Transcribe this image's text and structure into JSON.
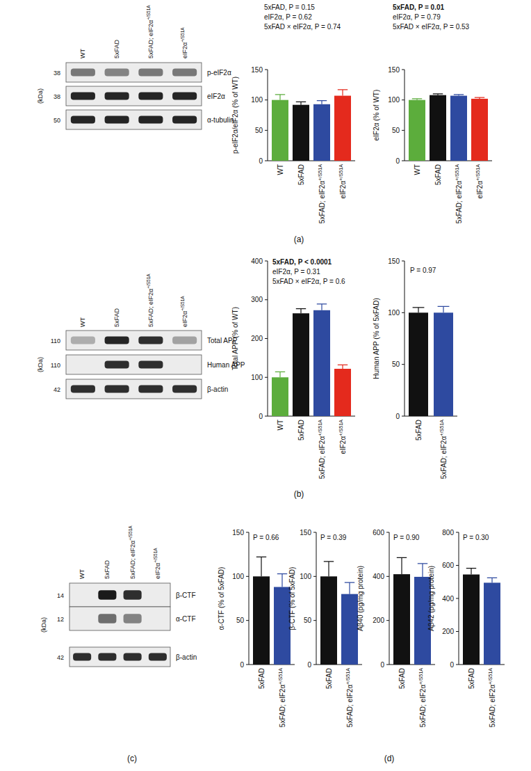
{
  "panel_labels": [
    "(a)",
    "(b)",
    "(c)",
    "(d)"
  ],
  "blots": [
    {
      "unit": "(kDa)",
      "lanes": [
        "WT",
        "5xFAD",
        "5xFAD; eIF2α+/S51A",
        "eIF2α+/S51A"
      ],
      "rows": [
        {
          "label": "p-eIF2α",
          "kda": 38,
          "bands": [
            0.55,
            0.5,
            0.55,
            0.55
          ]
        },
        {
          "label": "eIF2α",
          "kda": 38,
          "bands": [
            0.95,
            0.95,
            0.95,
            0.95
          ]
        },
        {
          "label": "α-tubulin",
          "kda": 50,
          "bands": [
            0.95,
            0.95,
            0.95,
            0.95
          ]
        }
      ]
    },
    {
      "unit": "(kDa)",
      "lanes": [
        "WT",
        "5xFAD",
        "5xFAD; eIF2α+/S51A",
        "eIF2α+/S51A"
      ],
      "rows": [
        {
          "label": "Total APP",
          "kda": 110,
          "bands": [
            0.3,
            0.95,
            0.9,
            0.35
          ]
        },
        {
          "label": "Human APP",
          "kda": 110,
          "bands": [
            0,
            0.9,
            0.9,
            0
          ]
        },
        {
          "label": "β-actin",
          "kda": 42,
          "bands": [
            0.9,
            0.9,
            0.9,
            0.9
          ]
        }
      ]
    },
    {
      "unit": "(kDa)",
      "lanes": [
        "WT",
        "5xFAD",
        "5xFAD; eIF2α+/S51A",
        "eIF2α+/S51A"
      ],
      "rows": [
        {
          "label": "β-CTF",
          "kda": 14,
          "bands": [
            0,
            1,
            0.9,
            0
          ]
        },
        {
          "label": "α-CTF",
          "kda": 12,
          "bands": [
            0,
            0.6,
            0.5,
            0
          ]
        },
        {
          "label": "β-actin",
          "kda": 42,
          "bands": [
            0.9,
            0.9,
            0.9,
            0.9
          ]
        }
      ]
    }
  ],
  "chart_data": [
    {
      "type": "bar",
      "ylabel": "p-eIF2α/eIF2α (% of WT)",
      "categories": [
        "WT",
        "5xFAD",
        "5xFAD; eIF2α+/S51A",
        "eIF2α+/S51A"
      ],
      "values": [
        100,
        92,
        93,
        107
      ],
      "errors": [
        9,
        5,
        6,
        10
      ],
      "colors": [
        "#5cad3c",
        "#111111",
        "#2e4aa0",
        "#e42a1d"
      ],
      "ylim": [
        0,
        150
      ],
      "yticks": [
        0,
        50,
        100,
        150
      ],
      "annotations": [
        "5xFAD, P = 0.15",
        "eIF2α, P = 0.62",
        "5xFAD × eIF2α, P = 0.74"
      ]
    },
    {
      "type": "bar",
      "ylabel": "eIF2α (% of WT)",
      "categories": [
        "WT",
        "5xFAD",
        "5xFAD; eIF2α+/S51A",
        "eIF2α+/S51A"
      ],
      "values": [
        100,
        108,
        107,
        102
      ],
      "errors": [
        2,
        2,
        2,
        2
      ],
      "colors": [
        "#5cad3c",
        "#111111",
        "#2e4aa0",
        "#e42a1d"
      ],
      "ylim": [
        0,
        150
      ],
      "yticks": [
        0,
        50,
        100,
        150
      ],
      "annotations": [
        "5xFAD, P = 0.01",
        "eIF2α, P = 0.79",
        "5xFAD × eIF2α, P = 0.53"
      ]
    },
    {
      "type": "bar",
      "ylabel": "Total APP (% of WT)",
      "categories": [
        "WT",
        "5xFAD",
        "5xFAD; eIF2α+/S51A",
        "eIF2α+/S51A"
      ],
      "values": [
        100,
        265,
        273,
        122
      ],
      "errors": [
        14,
        12,
        16,
        10
      ],
      "colors": [
        "#5cad3c",
        "#111111",
        "#2e4aa0",
        "#e42a1d"
      ],
      "ylim": [
        0,
        400
      ],
      "yticks": [
        0,
        100,
        200,
        300,
        400
      ],
      "annotations": [
        "5xFAD, P < 0.0001",
        "eIF2α, P = 0.31",
        "5xFAD × eIF2α, P = 0.6"
      ]
    },
    {
      "type": "bar",
      "ylabel": "Human APP (% of 5xFAD)",
      "categories": [
        "5xFAD",
        "5xFAD; eIF2α+/S51A"
      ],
      "values": [
        100,
        100
      ],
      "errors": [
        5,
        6
      ],
      "colors": [
        "#111111",
        "#2e4aa0"
      ],
      "ylim": [
        0,
        150
      ],
      "yticks": [
        0,
        50,
        100,
        150
      ],
      "annotations": [
        "P = 0.97"
      ]
    },
    {
      "type": "bar",
      "ylabel": "α-CTF (% of 5xFAD)",
      "categories": [
        "5xFAD",
        "5xFAD; eIF2α+/S51A"
      ],
      "values": [
        100,
        88
      ],
      "errors": [
        22,
        15
      ],
      "colors": [
        "#111111",
        "#2e4aa0"
      ],
      "ylim": [
        0,
        150
      ],
      "yticks": [
        0,
        50,
        100,
        150
      ],
      "annotations": [
        "P = 0.66"
      ]
    },
    {
      "type": "bar",
      "ylabel": "β-CTF (% of 5xFAD)",
      "categories": [
        "5xFAD",
        "5xFAD; eIF2α+/S51A"
      ],
      "values": [
        100,
        80
      ],
      "errors": [
        17,
        13
      ],
      "colors": [
        "#111111",
        "#2e4aa0"
      ],
      "ylim": [
        0,
        150
      ],
      "yticks": [
        0,
        50,
        100,
        150
      ],
      "annotations": [
        "P = 0.39"
      ]
    },
    {
      "type": "bar",
      "ylabel": "Aβ40 (pg/mg protein)",
      "categories": [
        "5xFAD",
        "5xFAD; eIF2α+/S51A"
      ],
      "values": [
        410,
        398
      ],
      "errors": [
        75,
        60
      ],
      "colors": [
        "#111111",
        "#2e4aa0"
      ],
      "ylim": [
        0,
        600
      ],
      "yticks": [
        0,
        200,
        400,
        600
      ],
      "annotations": [
        "P = 0.90"
      ]
    },
    {
      "type": "bar",
      "ylabel": "Aβ42 (pg/mg protein)",
      "categories": [
        "5xFAD",
        "5xFAD; eIF2α+/S51A"
      ],
      "values": [
        545,
        495
      ],
      "errors": [
        38,
        30
      ],
      "colors": [
        "#111111",
        "#2e4aa0"
      ],
      "ylim": [
        0,
        800
      ],
      "yticks": [
        0,
        200,
        400,
        600,
        800
      ],
      "annotations": [
        "P = 0.30"
      ]
    }
  ]
}
